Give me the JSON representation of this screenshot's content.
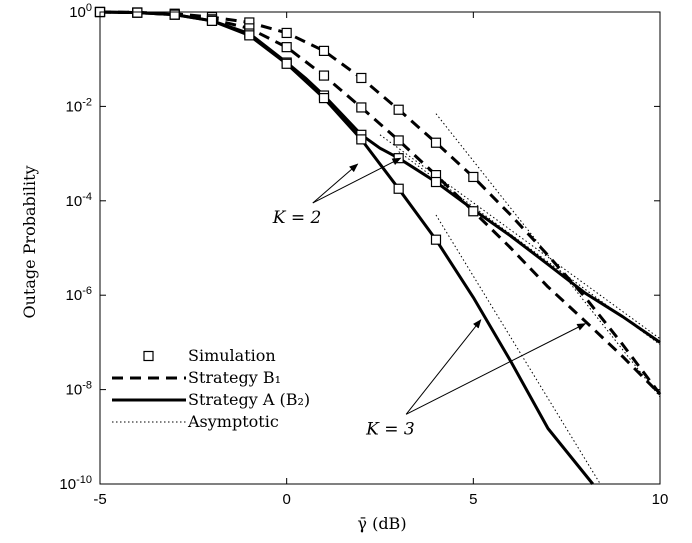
{
  "chart_data": {
    "type": "line",
    "xlabel": "γ̄ (dB)",
    "ylabel": "Outage Probability",
    "xlim": [
      -5,
      10
    ],
    "ylim": [
      1e-10,
      1
    ],
    "yscale": "log",
    "x_ticks": [
      -5,
      0,
      5,
      10
    ],
    "x_tick_labels": [
      "-5",
      "0",
      "5",
      "10"
    ],
    "y_ticks": [
      1,
      0.01,
      0.0001,
      1e-06,
      1e-08,
      1e-10
    ],
    "y_tick_labels": [
      {
        "base": "10",
        "exp": "0"
      },
      {
        "base": "10",
        "exp": "-2"
      },
      {
        "base": "10",
        "exp": "-4"
      },
      {
        "base": "10",
        "exp": "-6"
      },
      {
        "base": "10",
        "exp": "-8"
      },
      {
        "base": "10",
        "exp": "-10"
      }
    ],
    "grid": false,
    "legend": {
      "position": "bottom-left",
      "entries": [
        {
          "label": "Simulation",
          "style": "marker-square"
        },
        {
          "label": "Strategy B₁",
          "style": "dashed"
        },
        {
          "label": "Strategy A (B₂)",
          "style": "solid"
        },
        {
          "label": "Asymptotic",
          "style": "dotted"
        }
      ]
    },
    "annotations": [
      {
        "text": "K = 2",
        "anchor": [
          0.7,
          9e-05
        ],
        "arrow_targets": [
          [
            1.9,
            0.0006
          ],
          [
            3.05,
            0.0008
          ]
        ]
      },
      {
        "text": "K = 3",
        "anchor": [
          3.2,
          3e-09
        ],
        "arrow_targets": [
          [
            5.2,
            3e-07
          ],
          [
            8,
            2.5e-07
          ]
        ]
      }
    ],
    "series": [
      {
        "style": "dashed",
        "width": 3,
        "x": [
          -5,
          -4,
          -3,
          -2,
          -1,
          0,
          1,
          2,
          3,
          4,
          5,
          6,
          7,
          8,
          9,
          10
        ],
        "y": [
          1,
          0.98,
          0.92,
          0.78,
          0.6,
          0.36,
          0.15,
          0.04,
          0.0085,
          0.0017,
          0.00032,
          5e-05,
          7e-06,
          9e-07,
          9e-08,
          8e-09
        ]
      },
      {
        "style": "dashed",
        "width": 3,
        "x": [
          -5,
          -4,
          -3,
          -2,
          -1,
          0,
          1,
          2,
          3,
          4,
          5,
          6,
          7,
          8,
          9,
          10
        ],
        "y": [
          1,
          0.97,
          0.88,
          0.7,
          0.45,
          0.18,
          0.045,
          0.0095,
          0.0019,
          0.00035,
          6e-05,
          1e-05,
          1.5e-06,
          2.8e-07,
          5e-08,
          8e-09
        ]
      },
      {
        "style": "solid",
        "width": 3,
        "x": [
          -5,
          -4,
          -3,
          -2,
          -1,
          0,
          0.5,
          1,
          1.5,
          2,
          2.5,
          3,
          4,
          5,
          6,
          7,
          8,
          9,
          10
        ],
        "y": [
          1,
          0.97,
          0.88,
          0.65,
          0.35,
          0.085,
          0.04,
          0.017,
          0.0065,
          0.0025,
          0.0013,
          0.0008,
          0.00025,
          6.5e-05,
          1.8e-05,
          4.5e-06,
          1.1e-06,
          3.5e-07,
          1e-07
        ]
      },
      {
        "style": "solid",
        "width": 3,
        "x": [
          -5,
          -4,
          -3,
          -2,
          -1,
          0,
          1,
          2,
          3,
          4,
          5,
          6,
          7,
          8.2
        ],
        "y": [
          1,
          0.97,
          0.88,
          0.65,
          0.32,
          0.08,
          0.015,
          0.002,
          0.00018,
          1.5e-05,
          9e-07,
          4e-08,
          1.5e-09,
          1e-10
        ]
      },
      {
        "style": "dotted",
        "width": 1,
        "x": [
          4,
          10
        ],
        "y": [
          0.007,
          7e-09
        ]
      },
      {
        "style": "dotted",
        "width": 1,
        "x": [
          4,
          8.4
        ],
        "y": [
          5e-05,
          1e-10
        ]
      },
      {
        "style": "dotted",
        "width": 1,
        "x": [
          2.5,
          10
        ],
        "y": [
          0.0025,
          1.2e-07
        ]
      },
      {
        "style": "dotted",
        "width": 1,
        "x": [
          3,
          10
        ],
        "y": [
          0.0011,
          9e-08
        ]
      },
      {
        "style": "markers",
        "marker": "square",
        "x": [
          -5,
          -4,
          -3,
          -2,
          -1,
          0,
          1,
          2,
          3,
          4,
          5
        ],
        "y": [
          1,
          0.98,
          0.92,
          0.78,
          0.6,
          0.36,
          0.15,
          0.04,
          0.0085,
          0.0017,
          0.00032
        ]
      },
      {
        "style": "markers",
        "marker": "square",
        "x": [
          -5,
          -4,
          -3,
          -2,
          -1,
          0,
          1,
          2,
          3,
          4,
          5
        ],
        "y": [
          1,
          0.97,
          0.88,
          0.7,
          0.45,
          0.18,
          0.045,
          0.0095,
          0.0019,
          0.00035,
          6e-05
        ]
      },
      {
        "style": "markers",
        "marker": "square",
        "x": [
          -5,
          -4,
          -3,
          -2,
          -1,
          0,
          1,
          2,
          3,
          4
        ],
        "y": [
          1,
          0.97,
          0.88,
          0.65,
          0.35,
          0.085,
          0.017,
          0.0025,
          0.0008,
          0.00025
        ]
      },
      {
        "style": "markers",
        "marker": "square",
        "x": [
          -5,
          -4,
          -3,
          -2,
          -1,
          0,
          1,
          2,
          3,
          4
        ],
        "y": [
          1,
          0.97,
          0.88,
          0.65,
          0.32,
          0.08,
          0.015,
          0.002,
          0.00018,
          1.5e-05
        ]
      }
    ]
  }
}
